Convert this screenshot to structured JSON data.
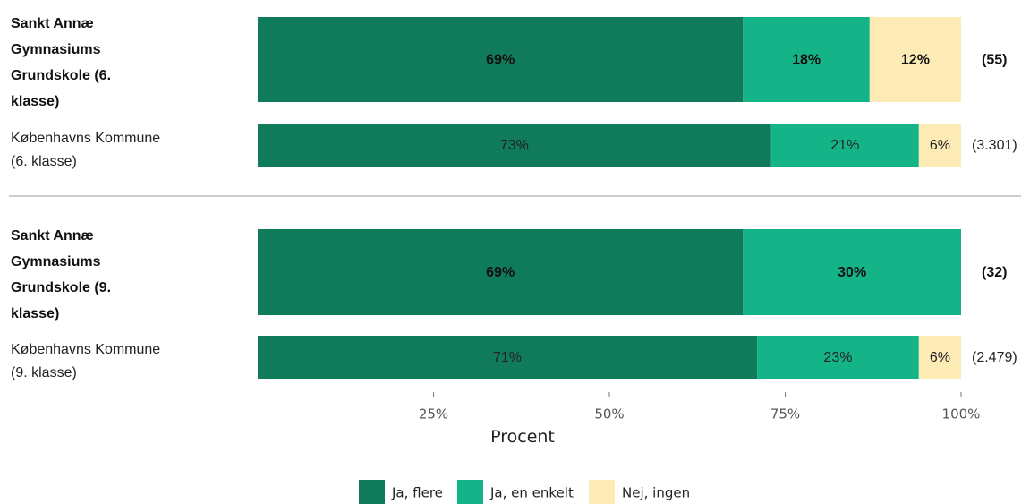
{
  "chart_data": {
    "type": "bar",
    "orientation": "horizontal",
    "stacked": true,
    "xlabel": "Procent",
    "ticks": [
      "25%",
      "50%",
      "75%",
      "100%"
    ],
    "xlim": [
      0,
      100
    ],
    "legend_position": "bottom",
    "series": [
      {
        "name": "Ja, flere",
        "color": "#0f7b5a"
      },
      {
        "name": "Ja, en enkelt",
        "color": "#14b488"
      },
      {
        "name": "Nej, ingen",
        "color": "#fdebb6"
      }
    ],
    "groups": [
      {
        "rows": [
          {
            "label_lines": [
              "Sankt Annæ",
              "Gymnasiums",
              "Grundskole (6.",
              "klasse)"
            ],
            "emphasis": true,
            "values": [
              69,
              18,
              12
            ],
            "value_labels": [
              "69%",
              "18%",
              "12%"
            ],
            "n_label": "(55)"
          },
          {
            "label_lines": [
              "Københavns Kommune",
              "(6. klasse)"
            ],
            "emphasis": false,
            "values": [
              73,
              21,
              6
            ],
            "value_labels": [
              "73%",
              "21%",
              "6%"
            ],
            "n_label": "(3.301)"
          }
        ]
      },
      {
        "rows": [
          {
            "label_lines": [
              "Sankt Annæ",
              "Gymnasiums",
              "Grundskole (9.",
              "klasse)"
            ],
            "emphasis": true,
            "values": [
              69,
              30,
              0
            ],
            "value_labels": [
              "69%",
              "30%",
              ""
            ],
            "n_label": "(32)"
          },
          {
            "label_lines": [
              "Københavns Kommune",
              "(9. klasse)"
            ],
            "emphasis": false,
            "values": [
              71,
              23,
              6
            ],
            "value_labels": [
              "71%",
              "23%",
              "6%"
            ],
            "n_label": "(2.479)"
          }
        ]
      }
    ]
  }
}
